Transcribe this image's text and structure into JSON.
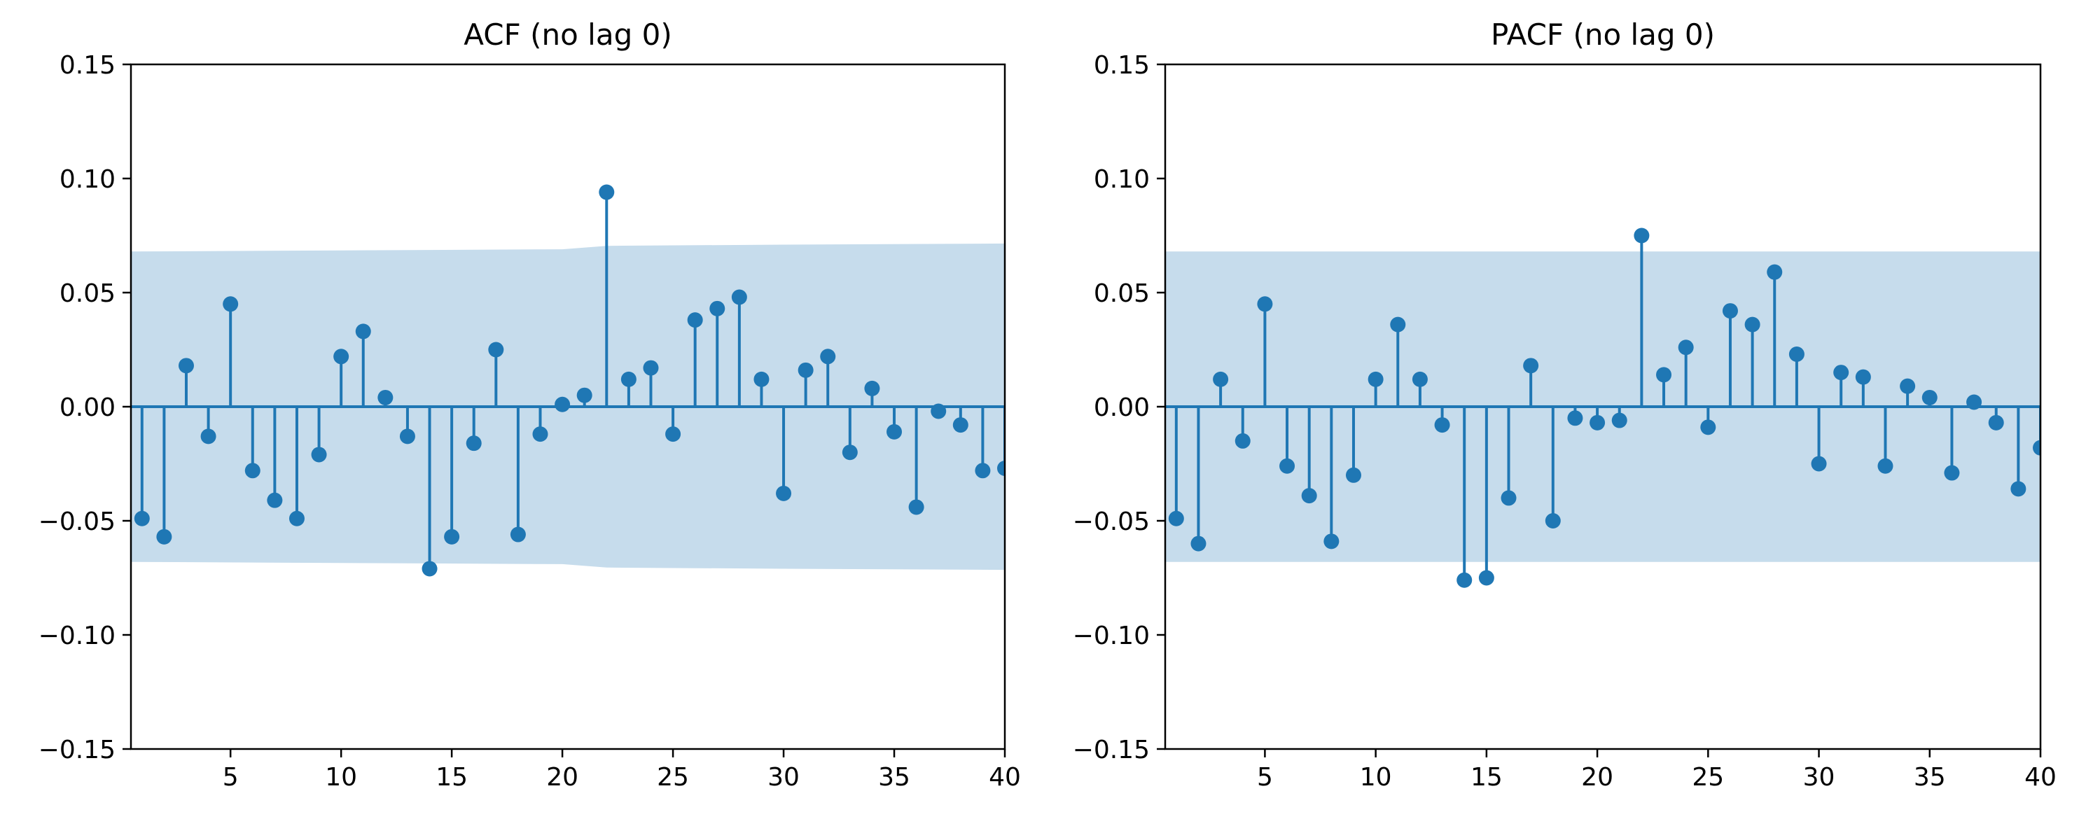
{
  "chart_data": [
    {
      "type": "stem",
      "title": "ACF (no lag 0)",
      "xlim": [
        0.5,
        40
      ],
      "ylim": [
        -0.15,
        0.15
      ],
      "xticks": [
        5,
        10,
        15,
        20,
        25,
        30,
        35,
        40
      ],
      "yticks": [
        -0.15,
        -0.1,
        -0.05,
        0.0,
        0.05,
        0.1,
        0.15
      ],
      "ytick_labels": [
        "−0.15",
        "−0.10",
        "−0.05",
        "0.00",
        "0.05",
        "0.10",
        "0.15"
      ],
      "x": [
        1,
        2,
        3,
        4,
        5,
        6,
        7,
        8,
        9,
        10,
        11,
        12,
        13,
        14,
        15,
        16,
        17,
        18,
        19,
        20,
        21,
        22,
        23,
        24,
        25,
        26,
        27,
        28,
        29,
        30,
        31,
        32,
        33,
        34,
        35,
        36,
        37,
        38,
        39,
        40
      ],
      "values": [
        -0.049,
        -0.057,
        0.018,
        -0.013,
        0.045,
        -0.028,
        -0.041,
        -0.049,
        -0.021,
        0.022,
        0.033,
        0.004,
        -0.013,
        -0.071,
        -0.057,
        -0.016,
        0.025,
        -0.056,
        -0.012,
        0.001,
        0.005,
        0.094,
        0.012,
        0.017,
        -0.012,
        0.038,
        0.043,
        0.048,
        0.012,
        -0.038,
        0.016,
        0.022,
        -0.02,
        0.008,
        -0.011,
        -0.044,
        -0.002,
        -0.008,
        -0.028,
        -0.027
      ],
      "confint_x": [
        0.5,
        10,
        20,
        22,
        30,
        40
      ],
      "confint_upper": [
        0.068,
        0.0685,
        0.069,
        0.0705,
        0.071,
        0.0715
      ],
      "confint_lower": [
        -0.068,
        -0.0685,
        -0.069,
        -0.0705,
        -0.071,
        -0.0715
      ],
      "colors": {
        "stem": "#1f77b4",
        "band": "#c6dcec",
        "axis": "#000000"
      },
      "grid": false,
      "legend": "none"
    },
    {
      "type": "stem",
      "title": "PACF (no lag 0)",
      "xlim": [
        0.5,
        40
      ],
      "ylim": [
        -0.15,
        0.15
      ],
      "xticks": [
        5,
        10,
        15,
        20,
        25,
        30,
        35,
        40
      ],
      "yticks": [
        -0.15,
        -0.1,
        -0.05,
        0.0,
        0.05,
        0.1,
        0.15
      ],
      "ytick_labels": [
        "−0.15",
        "−0.10",
        "−0.05",
        "0.00",
        "0.05",
        "0.10",
        "0.15"
      ],
      "x": [
        1,
        2,
        3,
        4,
        5,
        6,
        7,
        8,
        9,
        10,
        11,
        12,
        13,
        14,
        15,
        16,
        17,
        18,
        19,
        20,
        21,
        22,
        23,
        24,
        25,
        26,
        27,
        28,
        29,
        30,
        31,
        32,
        33,
        34,
        35,
        36,
        37,
        38,
        39,
        40
      ],
      "values": [
        -0.049,
        -0.06,
        0.012,
        -0.015,
        0.045,
        -0.026,
        -0.039,
        -0.059,
        -0.03,
        0.012,
        0.036,
        0.012,
        -0.008,
        -0.076,
        -0.075,
        -0.04,
        0.018,
        -0.05,
        -0.005,
        -0.007,
        -0.006,
        0.075,
        0.014,
        0.026,
        -0.009,
        0.042,
        0.036,
        0.059,
        0.023,
        -0.025,
        0.015,
        0.013,
        -0.026,
        0.009,
        0.004,
        -0.029,
        0.002,
        -0.007,
        -0.036,
        -0.018
      ],
      "confint_x": [
        0.5,
        40
      ],
      "confint_upper": [
        0.068,
        0.068
      ],
      "confint_lower": [
        -0.068,
        -0.068
      ],
      "colors": {
        "stem": "#1f77b4",
        "band": "#c6dcec",
        "axis": "#000000"
      },
      "grid": false,
      "legend": "none"
    }
  ]
}
